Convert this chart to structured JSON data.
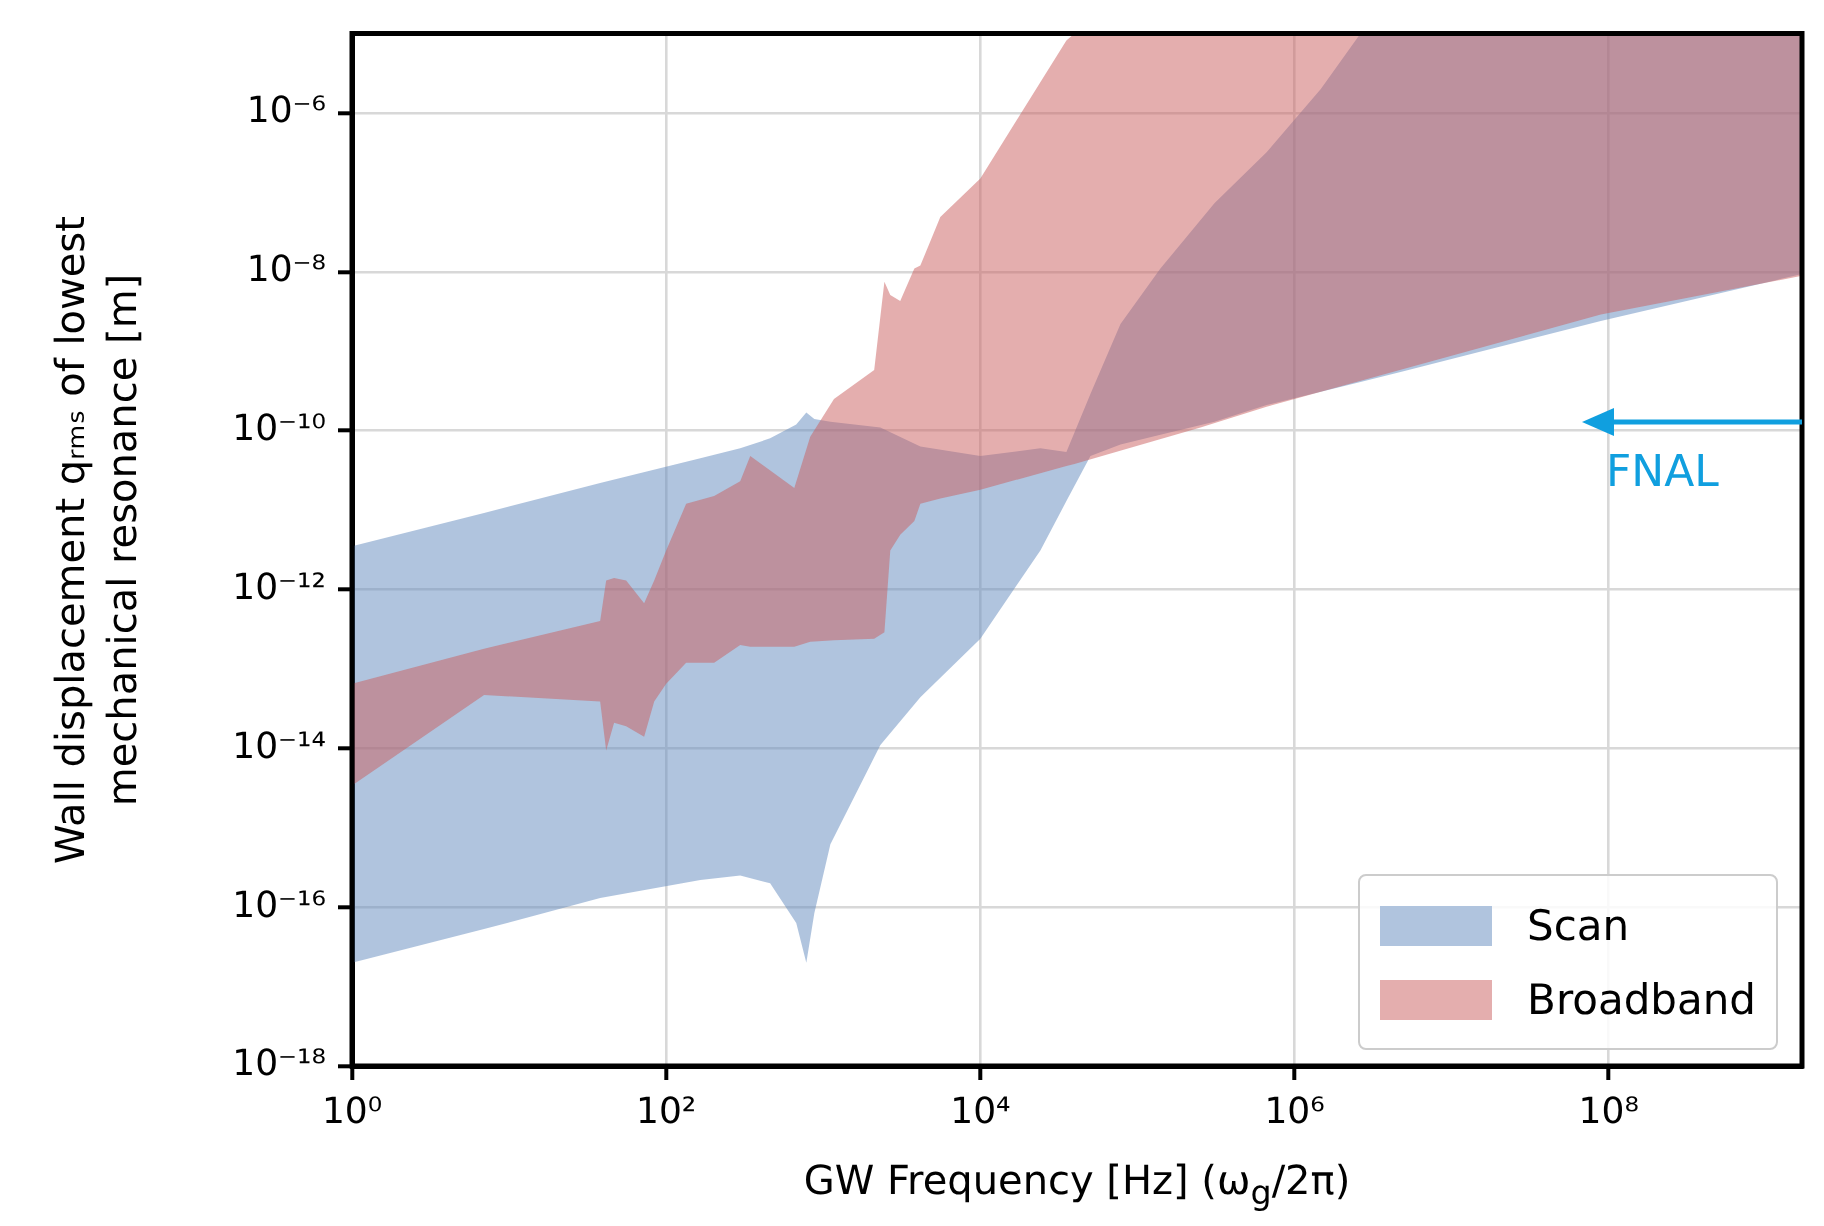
{
  "chart_data": {
    "type": "area",
    "xlabel": "GW Frequency [Hz] (ω$_{g}$/2π)",
    "ylabel": "Wall displacement qᵣₘₛ of lowest\nmechanical resonance [m]",
    "log": "xy",
    "grid": true,
    "legend": "bottom right",
    "xlim": [
      1,
      1700000000.0
    ],
    "ylim": [
      1e-18,
      1e-05
    ],
    "xticks": [
      {
        "value": 1,
        "label": "10⁰"
      },
      {
        "value": 100,
        "label": "10²"
      },
      {
        "value": 10000,
        "label": "10⁴"
      },
      {
        "value": 1000000,
        "label": "10⁶"
      },
      {
        "value": 100000000,
        "label": "10⁸"
      }
    ],
    "yticks": [
      {
        "value": 1e-18,
        "label": "10⁻¹⁸"
      },
      {
        "value": 1e-16,
        "label": "10⁻¹⁶"
      },
      {
        "value": 1e-14,
        "label": "10⁻¹⁴"
      },
      {
        "value": 1e-12,
        "label": "10⁻¹²"
      },
      {
        "value": 1e-10,
        "label": "10⁻¹⁰"
      },
      {
        "value": 1e-08,
        "label": "10⁻⁸"
      },
      {
        "value": 1e-06,
        "label": "10⁻⁶"
      }
    ],
    "annotations": [
      "FNAL"
    ],
    "series": [
      {
        "name": "Scan",
        "color": "#b0c4de",
        "x": [
          1,
          6.93,
          38,
          165,
          296,
          459,
          673,
          780,
          877,
          1110,
          2310,
          4150,
          10000,
          24100,
          35300,
          50200,
          78000,
          140000,
          309000,
          664000,
          1470000,
          2630000,
          4730000,
          89000000,
          1700000000
        ],
        "values": [
          null,
          null,
          null,
          null,
          null,
          null,
          null,
          null,
          null,
          null,
          null,
          null,
          null,
          null,
          null,
          null,
          null,
          null,
          null,
          null,
          null,
          null,
          null,
          null,
          null
        ],
        "lower": [
          2e-17,
          5.3e-17,
          1.3e-16,
          2.2e-16,
          2.5e-16,
          2e-16,
          6.3e-17,
          2e-17,
          8.4e-17,
          6.2e-16,
          1.1e-14,
          4.4e-14,
          2.4e-13,
          3.1e-12,
          1.3e-11,
          4.8e-11,
          6.7e-11,
          8.9e-11,
          1.3e-10,
          2.1e-10,
          3.1e-10,
          4.1e-10,
          5.5e-10,
          2.4e-09,
          9.4e-09
        ],
        "upper": [
          3.5e-12,
          9.2e-12,
          2.2e-11,
          4.5e-11,
          6e-11,
          8e-11,
          1.2e-10,
          1.7e-10,
          1.4e-10,
          1.3e-10,
          1.1e-10,
          6.3e-11,
          4.8e-11,
          6e-11,
          5.4e-11,
          2.9e-10,
          2.2e-09,
          1.1e-08,
          7.3e-08,
          3.2e-07,
          2e-06,
          1e-05,
          1e-05,
          1e-05,
          1e-05
        ]
      },
      {
        "name": "Broadband",
        "color": "#e4aeae",
        "x": [
          1,
          6.93,
          38,
          41.5,
          46.6,
          55.6,
          72.4,
          83.9,
          100,
          134,
          202,
          296,
          343,
          654,
          826,
          1170,
          2110,
          2450,
          2670,
          3090,
          3800,
          4150,
          5560,
          10000,
          35300,
          39700,
          252000,
          664000,
          89000000,
          1700000000
        ],
        "values": [
          null,
          null,
          null,
          null,
          null,
          null,
          null,
          null,
          null,
          null,
          null,
          null,
          null,
          null,
          null,
          null,
          null,
          null,
          null,
          null,
          null,
          null,
          null,
          null,
          null,
          null,
          null,
          null,
          null,
          null
        ],
        "lower": [
          3.4e-15,
          4.7e-14,
          3.9e-14,
          9.4e-15,
          2.1e-14,
          1.9e-14,
          1.4e-14,
          3.9e-14,
          6.5e-14,
          1.2e-13,
          1.2e-13,
          2e-13,
          1.9e-13,
          1.9e-13,
          2.2e-13,
          2.3e-13,
          2.4e-13,
          2.9e-13,
          3.1e-12,
          4.9e-12,
          7.3e-12,
          1.2e-11,
          1.4e-11,
          1.8e-11,
          3.6e-11,
          3.8e-11,
          1.1e-10,
          2e-10,
          2.9e-09,
          8.9e-09
        ],
        "upper": [
          6.5e-14,
          1.8e-13,
          4e-13,
          1.3e-12,
          1.4e-12,
          1.3e-12,
          6.7e-13,
          1.3e-12,
          3.1e-12,
          1.2e-11,
          1.5e-11,
          2.3e-11,
          4.8e-11,
          1.9e-11,
          8.4e-11,
          2.5e-10,
          5.8e-10,
          7.5e-09,
          5.1e-09,
          4.3e-09,
          1.1e-08,
          1.2e-08,
          4.9e-08,
          1.5e-07,
          8.2e-06,
          1e-05,
          1e-05,
          1e-05,
          1e-05,
          1e-05
        ]
      }
    ]
  }
}
